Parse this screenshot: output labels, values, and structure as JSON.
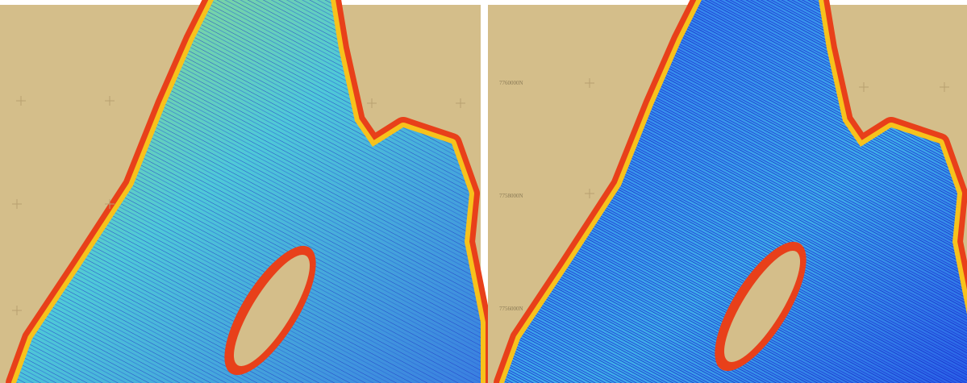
{
  "panels": [
    {
      "grid_labels": []
    },
    {
      "grid_labels": [
        "7760000N",
        "7758000N",
        "7756000N"
      ]
    }
  ]
}
